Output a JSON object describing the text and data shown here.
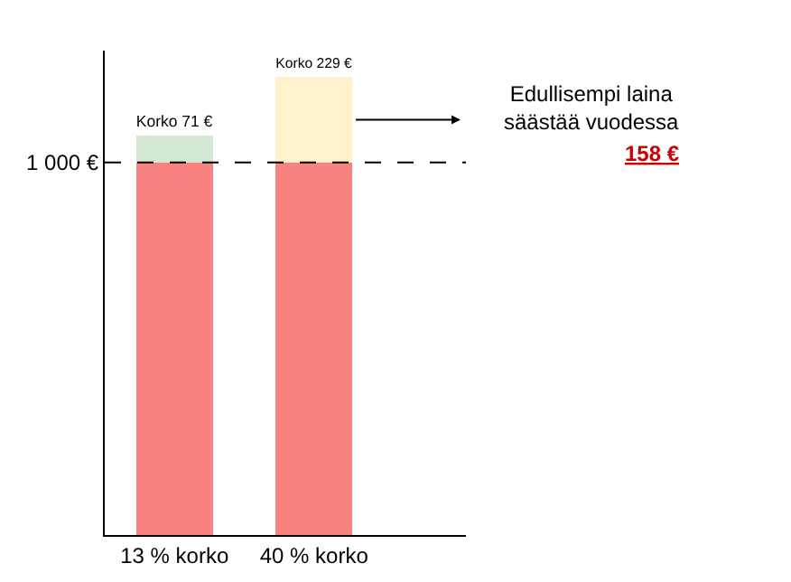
{
  "chart_data": {
    "type": "bar",
    "stacked": true,
    "categories": [
      "13 % korko",
      "40 % korko"
    ],
    "series": [
      {
        "color": "#f8827f",
        "values": [
          1000,
          1000
        ]
      },
      {
        "colors": [
          "#d5e8d4",
          "#fff2cc"
        ],
        "values": [
          71,
          229
        ],
        "value_labels": [
          "Korko 71 €",
          "Korko 229 €"
        ]
      }
    ],
    "ylim": [
      0,
      1300
    ],
    "yticks": [
      {
        "value": 1000,
        "label": "1 000 €"
      }
    ],
    "ref_lines": [
      {
        "axis": "y",
        "value": 1000,
        "line_style": "dashed",
        "color": "#000000"
      }
    ],
    "annotations": [
      "Edullisempi laina säästää vuodessa",
      "158 €"
    ],
    "grid": false
  }
}
